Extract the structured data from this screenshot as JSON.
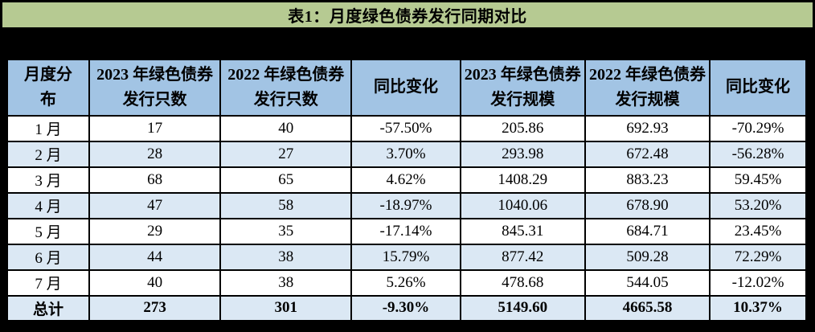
{
  "title": "表1：月度绿色债券发行同期对比",
  "colors": {
    "page_bg": "#000000",
    "title_bg": "#b6ca92",
    "header_bg": "#a2c4e4",
    "row_bg": "#ffffff",
    "row_alt_bg": "#dbe8f4",
    "border": "#000000",
    "text": "#000000"
  },
  "chart_data": {
    "type": "table",
    "title": "表1：月度绿色债券发行同期对比",
    "columns": [
      "月度分布",
      "2023 年绿色债券发行只数",
      "2022 年绿色债券发行只数",
      "同比变化",
      "2023 年绿色债券发行规模",
      "2022 年绿色债券发行规模",
      "同比变化"
    ],
    "rows": [
      [
        "1 月",
        "17",
        "40",
        "-57.50%",
        "205.86",
        "692.93",
        "-70.29%"
      ],
      [
        "2 月",
        "28",
        "27",
        "3.70%",
        "293.98",
        "672.48",
        "-56.28%"
      ],
      [
        "3 月",
        "68",
        "65",
        "4.62%",
        "1408.29",
        "883.23",
        "59.45%"
      ],
      [
        "4 月",
        "47",
        "58",
        "-18.97%",
        "1040.06",
        "678.90",
        "53.20%"
      ],
      [
        "5 月",
        "29",
        "35",
        "-17.14%",
        "845.31",
        "684.71",
        "23.45%"
      ],
      [
        "6 月",
        "44",
        "38",
        "15.79%",
        "877.42",
        "509.28",
        "72.29%"
      ],
      [
        "7 月",
        "40",
        "38",
        "5.26%",
        "478.68",
        "544.05",
        "-12.02%"
      ],
      [
        "总计",
        "273",
        "301",
        "-9.30%",
        "5149.60",
        "4665.58",
        "10.37%"
      ]
    ],
    "total_row_index": 7,
    "notes": "rows alternate white / light-blue shading; total row bold with light-blue shading"
  }
}
